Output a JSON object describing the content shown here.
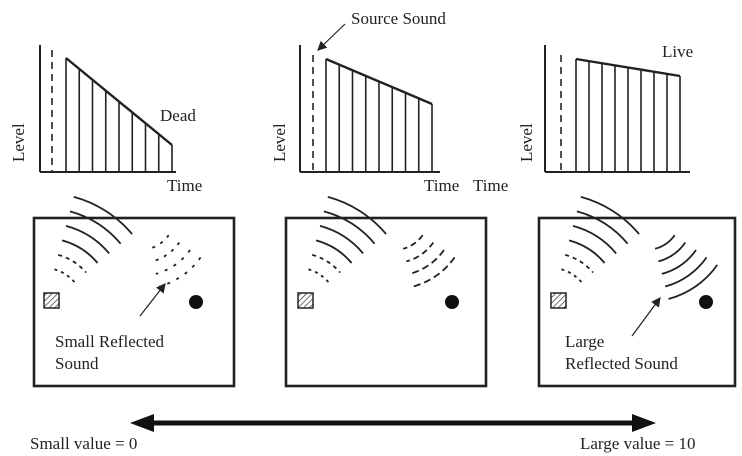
{
  "graphs": {
    "y_label": "Level",
    "x_label": "Time",
    "dead": {
      "label": "Dead"
    },
    "middle": {
      "callout": "Source Sound"
    },
    "live": {
      "label": "Live"
    }
  },
  "rooms": {
    "left": {
      "caption_line1": "Small Reflected",
      "caption_line2": "Sound"
    },
    "right": {
      "caption_line1": "Large",
      "caption_line2": "Reflected Sound"
    }
  },
  "scale": {
    "min_label": "Small value = 0",
    "max_label": "Large value = 10"
  },
  "colors": {
    "ink": "#222222",
    "background": "#ffffff"
  }
}
